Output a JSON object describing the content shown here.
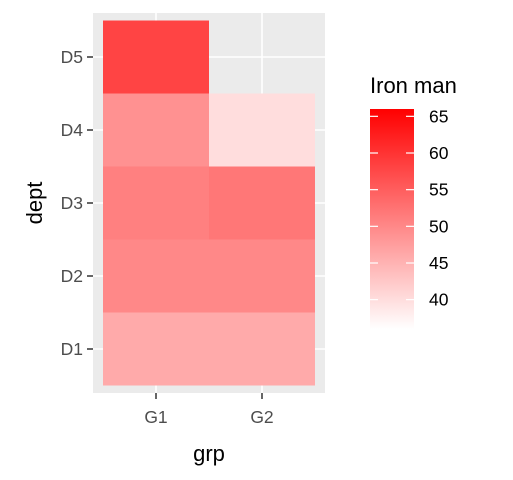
{
  "chart_data": {
    "type": "heatmap",
    "title": "",
    "xlabel": "grp",
    "ylabel": "dept",
    "x_categories": [
      "G1",
      "G2"
    ],
    "y_categories": [
      "D1",
      "D2",
      "D3",
      "D4",
      "D5"
    ],
    "cells": [
      {
        "x": "G1",
        "y": "D1",
        "value": 46
      },
      {
        "x": "G2",
        "y": "D1",
        "value": 46
      },
      {
        "x": "G1",
        "y": "D2",
        "value": 50
      },
      {
        "x": "G2",
        "y": "D2",
        "value": 50
      },
      {
        "x": "G1",
        "y": "D3",
        "value": 51
      },
      {
        "x": "G2",
        "y": "D3",
        "value": 52
      },
      {
        "x": "G1",
        "y": "D4",
        "value": 49
      },
      {
        "x": "G2",
        "y": "D4",
        "value": 40
      },
      {
        "x": "G1",
        "y": "D5",
        "value": 58
      }
    ],
    "legend": {
      "title": "Iron man",
      "placement": "right",
      "min": 36,
      "max": 66,
      "ticks": [
        65,
        60,
        55,
        50,
        45,
        40
      ],
      "low_color": "#ffffff",
      "high_color": "#ff0000"
    },
    "panel_background": "#ebebeb",
    "grid": true
  }
}
